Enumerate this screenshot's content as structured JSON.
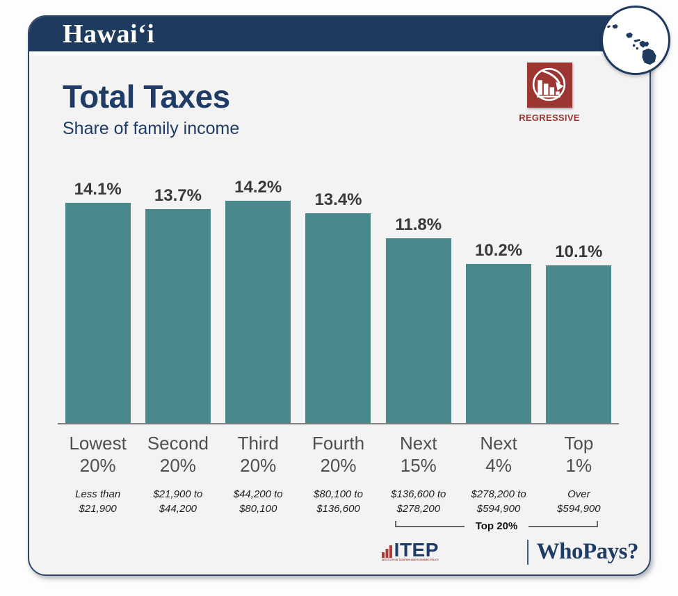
{
  "colors": {
    "navy": "#1e3a5f",
    "navy_text": "#1e3c66",
    "teal": "#4a898b",
    "red": "#9d3632",
    "card_bg": "#f3f3f4",
    "axis": "#7d7d7d"
  },
  "header": {
    "state_name": "Hawaiʻi"
  },
  "page": {
    "title": "Total Taxes",
    "subtitle": "Share of family income"
  },
  "badge": {
    "label": "REGRESSIVE"
  },
  "chart_data": {
    "type": "bar",
    "title": "Total Taxes",
    "subtitle": "Share of family income",
    "categories": [
      "Lowest 20%",
      "Second 20%",
      "Third 20%",
      "Fourth 20%",
      "Next 15%",
      "Next 4%",
      "Top 1%"
    ],
    "values": [
      14.1,
      13.7,
      14.2,
      13.4,
      11.8,
      10.2,
      10.1
    ],
    "value_labels": [
      "14.1%",
      "13.7%",
      "14.2%",
      "13.4%",
      "11.8%",
      "10.2%",
      "10.1%"
    ],
    "income_ranges": [
      "Less than $21,900",
      "$21,900 to $44,200",
      "$44,200 to $80,100",
      "$80,100 to $136,600",
      "$136,600 to $278,200",
      "$278,200 to $594,900",
      "Over $594,900"
    ],
    "bar_color": "#4a898b",
    "ylim": [
      0,
      14.6
    ],
    "y_axis_shown": false,
    "grid": false,
    "legend": "none",
    "annotation": {
      "label": "Top 20%",
      "covers": [
        "Next 15%",
        "Next 4%",
        "Top 1%"
      ]
    }
  },
  "bracket": {
    "label": "Top 20%"
  },
  "footer": {
    "itep_name": "ITEP",
    "itep_caption": "INSTITUTE ON TAXATION AND ECONOMIC POLICY",
    "whopays_name": "WhoPays?"
  }
}
